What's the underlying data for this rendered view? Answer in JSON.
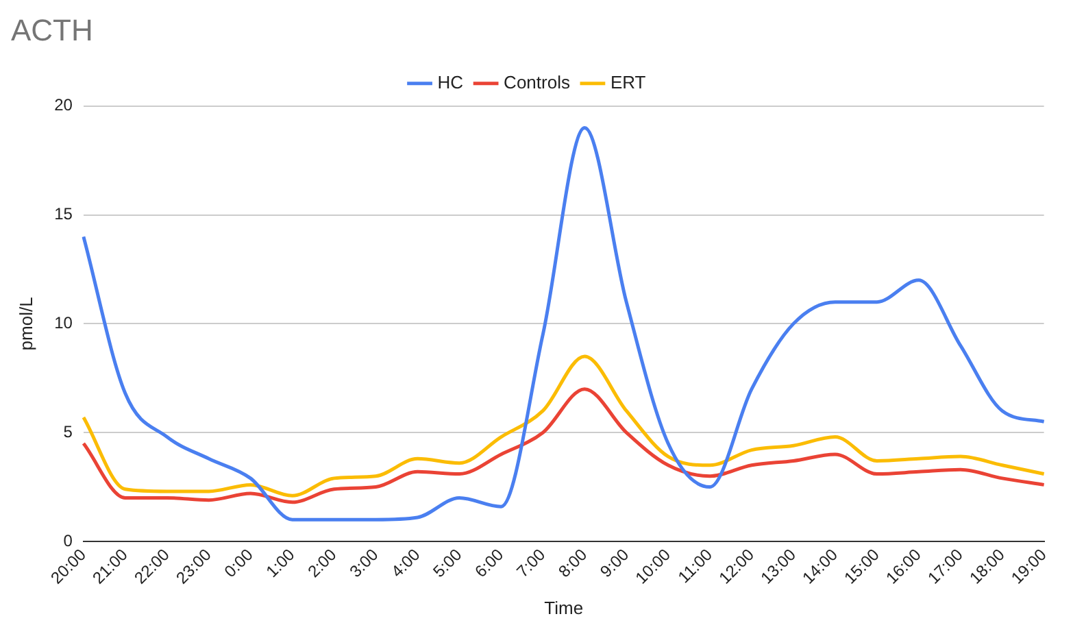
{
  "chart_data": {
    "type": "line",
    "title": "ACTH",
    "xlabel": "Time",
    "ylabel": "pmol/L",
    "categories": [
      "20:00",
      "21:00",
      "22:00",
      "23:00",
      "0:00",
      "1:00",
      "2:00",
      "3:00",
      "4:00",
      "5:00",
      "6:00",
      "7:00",
      "8:00",
      "9:00",
      "10:00",
      "11:00",
      "12:00",
      "13:00",
      "14:00",
      "15:00",
      "16:00",
      "17:00",
      "18:00",
      "19:00"
    ],
    "series": [
      {
        "name": "HC",
        "color": "#4a7ff0",
        "values": [
          14,
          6.8,
          4.8,
          3.8,
          2.9,
          1.0,
          1.0,
          1.0,
          1.1,
          2.0,
          1.6,
          9.5,
          19.0,
          11,
          4.5,
          2.5,
          7,
          10,
          11,
          11,
          12,
          9,
          6,
          5.5
        ]
      },
      {
        "name": "Controls",
        "color": "#ea4335",
        "values": [
          4.5,
          2.0,
          2.0,
          1.9,
          2.2,
          1.8,
          2.4,
          2.5,
          3.2,
          3.1,
          4.0,
          5.0,
          7.0,
          5.0,
          3.5,
          3.0,
          3.5,
          3.7,
          4.0,
          3.1,
          3.2,
          3.3,
          2.9,
          2.6
        ]
      },
      {
        "name": "ERT",
        "color": "#fbbc04",
        "values": [
          5.7,
          2.4,
          2.3,
          2.3,
          2.6,
          2.1,
          2.9,
          3.0,
          3.8,
          3.6,
          4.8,
          6.0,
          8.5,
          6.0,
          3.9,
          3.5,
          4.2,
          4.4,
          4.8,
          3.7,
          3.8,
          3.9,
          3.5,
          3.1
        ]
      }
    ],
    "ylim": [
      0,
      20
    ],
    "yticks": [
      0,
      5,
      10,
      15,
      20
    ],
    "grid": "y",
    "legend": "top",
    "marker": "none",
    "line_style": "solid"
  }
}
